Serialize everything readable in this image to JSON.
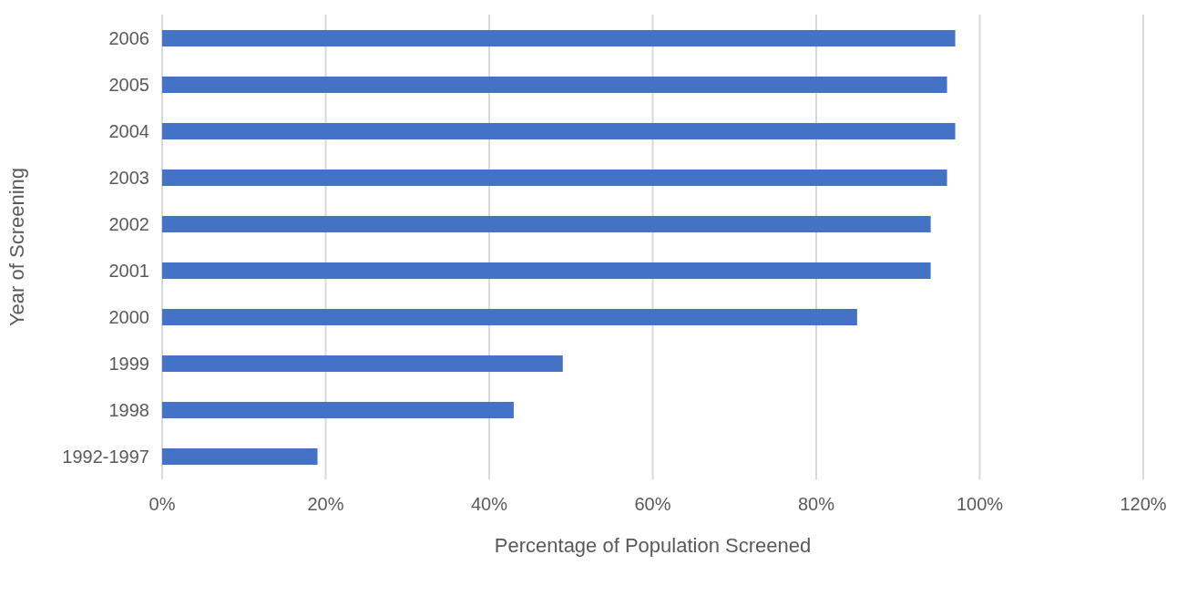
{
  "chart_data": {
    "type": "bar",
    "orientation": "horizontal",
    "xlabel": "Percentage of Population Screened",
    "ylabel": "Year of Screening",
    "categories": [
      "2006",
      "2005",
      "2004",
      "2003",
      "2002",
      "2001",
      "2000",
      "1999",
      "1998",
      "1992-1997"
    ],
    "values": [
      97,
      96,
      97,
      96,
      94,
      94,
      85,
      49,
      43,
      19
    ],
    "color": "#4472c4",
    "xlim": [
      0,
      120
    ],
    "xticks": [
      {
        "value": 0,
        "label": "0%"
      },
      {
        "value": 20,
        "label": "20%"
      },
      {
        "value": 40,
        "label": "40%"
      },
      {
        "value": 60,
        "label": "60%"
      },
      {
        "value": 80,
        "label": "80%"
      },
      {
        "value": 100,
        "label": "100%"
      },
      {
        "value": 120,
        "label": "120%"
      }
    ],
    "grid": "x",
    "legend": false
  }
}
